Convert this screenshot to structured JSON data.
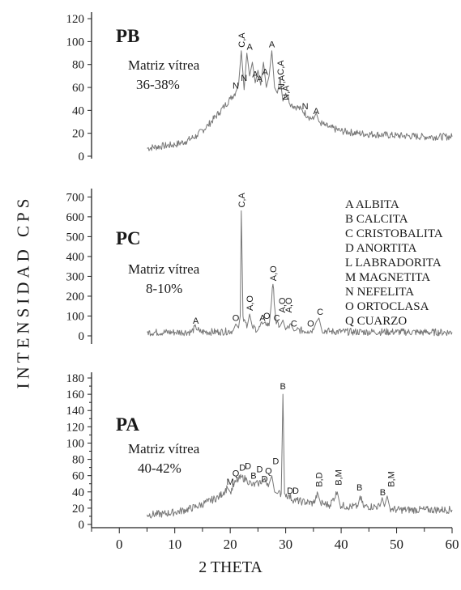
{
  "chart_data": [
    {
      "type": "line",
      "panel_label": "PB",
      "annotation": [
        "Matriz vítrea",
        "36-38%"
      ],
      "yticks": [
        0,
        20,
        40,
        60,
        80,
        100,
        120
      ],
      "ylim": [
        0,
        125
      ],
      "series": [
        {
          "x": [
            5,
            8,
            10,
            12,
            14,
            16,
            18,
            19,
            20,
            21,
            21.5,
            22,
            22.5,
            23,
            23.5,
            24,
            24.5,
            25,
            25.5,
            26,
            26.5,
            27,
            27.5,
            28,
            28.5,
            29,
            29.5,
            30,
            31,
            32,
            33,
            34,
            35,
            35.5,
            36,
            37,
            38,
            40,
            43,
            46,
            50,
            55,
            60
          ],
          "y": [
            7,
            9,
            10,
            13,
            18,
            27,
            38,
            44,
            50,
            56,
            62,
            92,
            58,
            90,
            70,
            82,
            64,
            75,
            62,
            82,
            60,
            70,
            92,
            60,
            55,
            68,
            48,
            55,
            45,
            43,
            40,
            35,
            32,
            38,
            30,
            27,
            25,
            22,
            20,
            19,
            18,
            17,
            17
          ]
        }
      ],
      "peak_labels": [
        {
          "x": 21,
          "y": 56,
          "text": "N"
        },
        {
          "x": 22,
          "y": 92,
          "text": "C,A"
        },
        {
          "x": 22.5,
          "y": 63,
          "text": "N"
        },
        {
          "x": 23.5,
          "y": 90,
          "text": "A"
        },
        {
          "x": 24.5,
          "y": 66,
          "text": "A"
        },
        {
          "x": 25.3,
          "y": 62,
          "text": "A"
        },
        {
          "x": 26.3,
          "y": 68,
          "text": "A"
        },
        {
          "x": 27.5,
          "y": 92,
          "text": "A"
        },
        {
          "x": 29,
          "y": 68,
          "text": "C,A"
        },
        {
          "x": 29.2,
          "y": 55,
          "text": "N,A"
        },
        {
          "x": 30,
          "y": 46,
          "text": "N,A"
        },
        {
          "x": 33.5,
          "y": 38,
          "text": "N"
        },
        {
          "x": 35.5,
          "y": 34,
          "text": "A"
        }
      ]
    },
    {
      "type": "line",
      "panel_label": "PC",
      "annotation": [
        "Matriz vítrea",
        "8-10%"
      ],
      "yticks": [
        0,
        100,
        200,
        300,
        400,
        500,
        600,
        700
      ],
      "ylim": [
        0,
        730
      ],
      "legend": [
        "A ALBITA",
        "B CALCITA",
        "C CRISTOBALITA",
        "D ANORTITA",
        "L LABRADORITA",
        "M MAGNETITA",
        "N NEFELITA",
        "O ORTOCLASA",
        "Q CUARZO"
      ],
      "series": [
        {
          "x": [
            5,
            10,
            13,
            13.8,
            14.5,
            18,
            20.5,
            21,
            21.5,
            21.8,
            22,
            22.3,
            23,
            23.5,
            24,
            25,
            25.8,
            26.3,
            27,
            27.7,
            28.3,
            29,
            29.5,
            30,
            31,
            31.5,
            32,
            34,
            35,
            35.5,
            36,
            36.5,
            38,
            42,
            46,
            50,
            55,
            60
          ],
          "y": [
            18,
            18,
            20,
            45,
            20,
            20,
            25,
            60,
            40,
            100,
            630,
            100,
            40,
            110,
            45,
            30,
            60,
            70,
            50,
            260,
            60,
            50,
            80,
            30,
            55,
            25,
            30,
            25,
            30,
            70,
            90,
            30,
            22,
            20,
            20,
            20,
            18,
            18
          ]
        }
      ],
      "peak_labels": [
        {
          "x": 13.8,
          "y": 45,
          "text": "A"
        },
        {
          "x": 21,
          "y": 60,
          "text": "O"
        },
        {
          "x": 22,
          "y": 630,
          "text": "C,A"
        },
        {
          "x": 23.5,
          "y": 110,
          "text": "A,O"
        },
        {
          "x": 25.8,
          "y": 60,
          "text": "A"
        },
        {
          "x": 26.6,
          "y": 70,
          "text": "O"
        },
        {
          "x": 27.7,
          "y": 260,
          "text": "A,O"
        },
        {
          "x": 28.4,
          "y": 60,
          "text": "C"
        },
        {
          "x": 29.3,
          "y": 100,
          "text": "A,O"
        },
        {
          "x": 30.5,
          "y": 100,
          "text": "A,O"
        },
        {
          "x": 31.5,
          "y": 30,
          "text": "C"
        },
        {
          "x": 34.5,
          "y": 30,
          "text": "O"
        },
        {
          "x": 36.2,
          "y": 90,
          "text": "C"
        }
      ]
    },
    {
      "type": "line",
      "panel_label": "PA",
      "annotation": [
        "Matriz vítrea",
        "40-42%"
      ],
      "yticks": [
        0,
        10,
        20,
        30,
        40,
        50,
        60,
        70,
        80,
        90,
        100,
        110,
        120,
        130,
        140,
        150,
        160,
        170,
        180
      ],
      "ylabels": [
        0,
        20,
        40,
        60,
        80,
        100,
        120,
        140,
        160,
        180
      ],
      "ylim": [
        0,
        185
      ],
      "xticks": [
        0,
        10,
        20,
        30,
        40,
        50,
        60
      ],
      "xlim": [
        -5,
        60
      ],
      "xlabel": "2 THETA",
      "series": [
        {
          "x": [
            5,
            8,
            10,
            12,
            14,
            16,
            18,
            19.5,
            20,
            21,
            22,
            23,
            24,
            25,
            26,
            27,
            27.5,
            28,
            28.5,
            29.2,
            29.5,
            29.8,
            30.5,
            31.5,
            33,
            35,
            35.8,
            36.3,
            38,
            39.3,
            39.8,
            41,
            43,
            43.4,
            44,
            47,
            47.4,
            47.8,
            48.3,
            48.8,
            50,
            55,
            60
          ],
          "y": [
            12,
            13,
            15,
            18,
            22,
            28,
            34,
            45,
            40,
            52,
            58,
            55,
            48,
            50,
            55,
            50,
            60,
            40,
            38,
            38,
            160,
            38,
            35,
            30,
            28,
            26,
            38,
            26,
            24,
            40,
            24,
            22,
            22,
            35,
            22,
            22,
            33,
            22,
            35,
            20,
            18,
            18,
            18
          ]
        }
      ],
      "peak_labels": [
        {
          "x": 20,
          "y": 45,
          "text": "M"
        },
        {
          "x": 21,
          "y": 55,
          "text": "Q"
        },
        {
          "x": 22.2,
          "y": 62,
          "text": "D"
        },
        {
          "x": 23.2,
          "y": 64,
          "text": "D"
        },
        {
          "x": 24.2,
          "y": 52,
          "text": "B"
        },
        {
          "x": 25.3,
          "y": 60,
          "text": "D"
        },
        {
          "x": 26.2,
          "y": 48,
          "text": "D"
        },
        {
          "x": 26.9,
          "y": 58,
          "text": "Q"
        },
        {
          "x": 28.2,
          "y": 70,
          "text": "D"
        },
        {
          "x": 29.5,
          "y": 162,
          "text": "B"
        },
        {
          "x": 30.8,
          "y": 34,
          "text": "D"
        },
        {
          "x": 31.8,
          "y": 34,
          "text": "D"
        },
        {
          "x": 36,
          "y": 42,
          "text": "B,D"
        },
        {
          "x": 39.5,
          "y": 44,
          "text": "B,M"
        },
        {
          "x": 43.3,
          "y": 38,
          "text": "B"
        },
        {
          "x": 47.5,
          "y": 32,
          "text": "B"
        },
        {
          "x": 49,
          "y": 42,
          "text": "B,M"
        }
      ]
    }
  ],
  "shared_ylabel": "INTENSIDAD  CPS",
  "colors": {
    "trace": "#777777",
    "text": "#1a1a1a",
    "axis": "#222222"
  }
}
